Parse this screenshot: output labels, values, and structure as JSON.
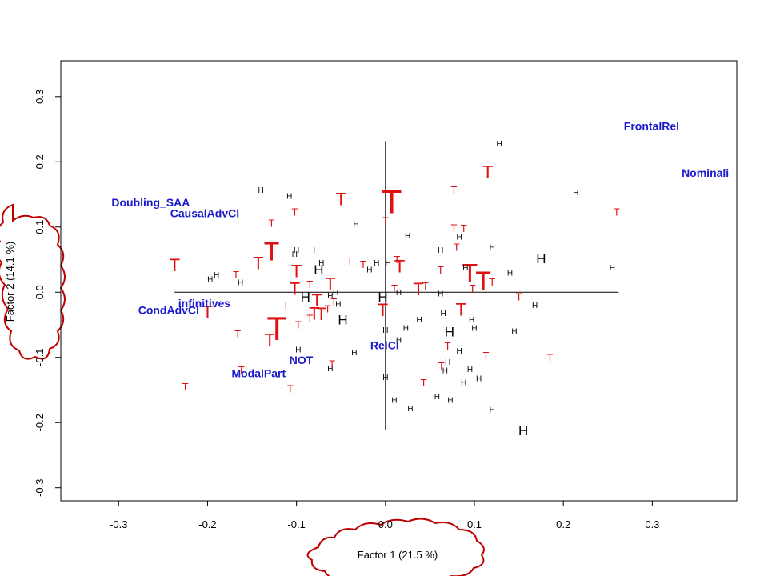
{
  "chart_data": {
    "type": "scatter",
    "title": "",
    "xlabel": "Factor 1  (21.5 %)",
    "ylabel": "Factor 2  (14.1 %)",
    "xlim": [
      -0.365,
      0.395
    ],
    "ylim": [
      -0.32,
      0.355
    ],
    "xticks": [
      -0.3,
      -0.2,
      -0.1,
      0.0,
      0.1,
      0.2,
      0.3
    ],
    "yticks": [
      -0.3,
      -0.2,
      -0.1,
      0.0,
      0.1,
      0.2,
      0.3
    ],
    "xtick_labels": [
      "-0.3",
      "-0.2",
      "-0.1",
      "0.0",
      "0.1",
      "0.2",
      "0.3"
    ],
    "ytick_labels": [
      "-0.3",
      "-0.2",
      "-0.1",
      "0.0",
      "0.1",
      "0.2",
      "0.3"
    ],
    "grid": false,
    "colors": {
      "T": "#e01010",
      "H": "#000000",
      "variables": "#1a1acc",
      "cloud": "#c00000"
    },
    "variables": [
      {
        "label": "FrontalRel",
        "x": 0.268,
        "y": 0.255
      },
      {
        "label": "Nominali",
        "x": 0.333,
        "y": 0.183
      },
      {
        "label": "Doubling_SAA",
        "x": -0.308,
        "y": 0.138
      },
      {
        "label": "CausalAdvCl",
        "x": -0.242,
        "y": 0.121
      },
      {
        "label": "infinitives",
        "x": -0.233,
        "y": -0.017
      },
      {
        "label": "CondAdvCl",
        "x": -0.278,
        "y": -0.027
      },
      {
        "label": "RelCl",
        "x": -0.017,
        "y": -0.081
      },
      {
        "label": "NOT",
        "x": -0.108,
        "y": -0.104
      },
      {
        "label": "ModalPart",
        "x": -0.173,
        "y": -0.124
      }
    ],
    "reference_lines": {
      "horizontal": {
        "y": 0.0,
        "x_from": -0.237,
        "x_to": 0.262
      },
      "vertical": {
        "x": 0.0,
        "y_from": -0.212,
        "y_to": 0.232
      }
    },
    "series": [
      {
        "label": "T",
        "points": [
          {
            "x": 0.115,
            "y": 0.185,
            "size": 2
          },
          {
            "x": -0.05,
            "y": 0.143,
            "size": 2
          },
          {
            "x": 0.077,
            "y": 0.157,
            "size": 1
          },
          {
            "x": 0.26,
            "y": 0.123,
            "size": 1
          },
          {
            "x": -0.102,
            "y": 0.123,
            "size": 1
          },
          {
            "x": -0.128,
            "y": 0.106,
            "size": 1
          },
          {
            "x": 0.077,
            "y": 0.099,
            "size": 1
          },
          {
            "x": 0.088,
            "y": 0.098,
            "size": 1
          },
          {
            "x": 0.08,
            "y": 0.069,
            "size": 1
          },
          {
            "x": 0.007,
            "y": 0.14,
            "size": 4
          },
          {
            "x": 0.0,
            "y": 0.11,
            "size": 1
          },
          {
            "x": -0.128,
            "y": 0.063,
            "size": 3
          },
          {
            "x": -0.143,
            "y": 0.045,
            "size": 2
          },
          {
            "x": -0.237,
            "y": 0.042,
            "size": 2
          },
          {
            "x": -0.04,
            "y": 0.048,
            "size": 1
          },
          {
            "x": -0.025,
            "y": 0.043,
            "size": 1
          },
          {
            "x": 0.013,
            "y": 0.05,
            "size": 1
          },
          {
            "x": 0.016,
            "y": 0.04,
            "size": 2
          },
          {
            "x": -0.1,
            "y": 0.033,
            "size": 2
          },
          {
            "x": 0.062,
            "y": 0.034,
            "size": 1
          },
          {
            "x": 0.095,
            "y": 0.03,
            "size": 3
          },
          {
            "x": 0.11,
            "y": 0.018,
            "size": 3
          },
          {
            "x": -0.168,
            "y": 0.027,
            "size": 1
          },
          {
            "x": -0.062,
            "y": 0.013,
            "size": 2
          },
          {
            "x": -0.102,
            "y": 0.006,
            "size": 2
          },
          {
            "x": -0.085,
            "y": 0.012,
            "size": 1
          },
          {
            "x": 0.12,
            "y": 0.016,
            "size": 1
          },
          {
            "x": 0.045,
            "y": 0.01,
            "size": 1
          },
          {
            "x": 0.037,
            "y": 0.005,
            "size": 2
          },
          {
            "x": 0.01,
            "y": 0.006,
            "size": 1
          },
          {
            "x": 0.098,
            "y": 0.006,
            "size": 1
          },
          {
            "x": -0.077,
            "y": -0.012,
            "size": 2
          },
          {
            "x": -0.058,
            "y": -0.015,
            "size": 1
          },
          {
            "x": 0.15,
            "y": -0.007,
            "size": 1
          },
          {
            "x": -0.112,
            "y": -0.02,
            "size": 1
          },
          {
            "x": -0.065,
            "y": -0.025,
            "size": 1
          },
          {
            "x": -0.08,
            "y": -0.032,
            "size": 2
          },
          {
            "x": -0.072,
            "y": -0.033,
            "size": 2
          },
          {
            "x": -0.003,
            "y": -0.027,
            "size": 2
          },
          {
            "x": 0.085,
            "y": -0.026,
            "size": 2
          },
          {
            "x": -0.2,
            "y": -0.03,
            "size": 2
          },
          {
            "x": -0.085,
            "y": -0.04,
            "size": 1
          },
          {
            "x": -0.098,
            "y": -0.05,
            "size": 1
          },
          {
            "x": -0.122,
            "y": -0.055,
            "size": 4
          },
          {
            "x": -0.166,
            "y": -0.064,
            "size": 1
          },
          {
            "x": -0.13,
            "y": -0.073,
            "size": 2
          },
          {
            "x": 0.07,
            "y": -0.082,
            "size": 1
          },
          {
            "x": 0.113,
            "y": -0.097,
            "size": 1
          },
          {
            "x": 0.185,
            "y": -0.1,
            "size": 1
          },
          {
            "x": -0.06,
            "y": -0.11,
            "size": 1
          },
          {
            "x": 0.063,
            "y": -0.113,
            "size": 1
          },
          {
            "x": -0.162,
            "y": -0.119,
            "size": 1
          },
          {
            "x": 0.043,
            "y": -0.139,
            "size": 1
          },
          {
            "x": -0.225,
            "y": -0.145,
            "size": 1
          },
          {
            "x": -0.107,
            "y": -0.148,
            "size": 1
          }
        ]
      },
      {
        "label": "H",
        "points": [
          {
            "x": 0.128,
            "y": 0.228,
            "size": 1
          },
          {
            "x": -0.14,
            "y": 0.157,
            "size": 1
          },
          {
            "x": -0.108,
            "y": 0.148,
            "size": 1
          },
          {
            "x": 0.214,
            "y": 0.153,
            "size": 1
          },
          {
            "x": -0.033,
            "y": 0.105,
            "size": 1
          },
          {
            "x": 0.083,
            "y": 0.085,
            "size": 1
          },
          {
            "x": 0.025,
            "y": 0.087,
            "size": 1
          },
          {
            "x": -0.1,
            "y": 0.065,
            "size": 1
          },
          {
            "x": -0.078,
            "y": 0.065,
            "size": 1
          },
          {
            "x": 0.062,
            "y": 0.065,
            "size": 1
          },
          {
            "x": 0.12,
            "y": 0.069,
            "size": 1
          },
          {
            "x": 0.175,
            "y": 0.052,
            "size": 2
          },
          {
            "x": -0.102,
            "y": 0.059,
            "size": 1
          },
          {
            "x": -0.01,
            "y": 0.045,
            "size": 1
          },
          {
            "x": 0.003,
            "y": 0.045,
            "size": 1
          },
          {
            "x": -0.072,
            "y": 0.045,
            "size": 1
          },
          {
            "x": -0.075,
            "y": 0.035,
            "size": 2
          },
          {
            "x": -0.018,
            "y": 0.035,
            "size": 1
          },
          {
            "x": 0.09,
            "y": 0.038,
            "size": 1
          },
          {
            "x": 0.255,
            "y": 0.038,
            "size": 1
          },
          {
            "x": 0.14,
            "y": 0.03,
            "size": 1
          },
          {
            "x": -0.19,
            "y": 0.027,
            "size": 1
          },
          {
            "x": -0.197,
            "y": 0.02,
            "size": 1
          },
          {
            "x": -0.163,
            "y": 0.015,
            "size": 1
          },
          {
            "x": -0.056,
            "y": 0.0,
            "size": 1
          },
          {
            "x": 0.015,
            "y": 0.0,
            "size": 1
          },
          {
            "x": -0.09,
            "y": -0.007,
            "size": 2
          },
          {
            "x": -0.003,
            "y": -0.007,
            "size": 2
          },
          {
            "x": 0.062,
            "y": -0.002,
            "size": 1
          },
          {
            "x": -0.062,
            "y": -0.005,
            "size": 1
          },
          {
            "x": -0.053,
            "y": -0.018,
            "size": 1
          },
          {
            "x": 0.168,
            "y": -0.02,
            "size": 1
          },
          {
            "x": -0.048,
            "y": -0.042,
            "size": 2
          },
          {
            "x": 0.065,
            "y": -0.032,
            "size": 1
          },
          {
            "x": 0.097,
            "y": -0.042,
            "size": 1
          },
          {
            "x": 0.038,
            "y": -0.042,
            "size": 1
          },
          {
            "x": 0.023,
            "y": -0.055,
            "size": 1
          },
          {
            "x": 0.1,
            "y": -0.055,
            "size": 1
          },
          {
            "x": 0.145,
            "y": -0.06,
            "size": 1
          },
          {
            "x": 0.072,
            "y": -0.06,
            "size": 2
          },
          {
            "x": 0.0,
            "y": -0.058,
            "size": 1
          },
          {
            "x": 0.015,
            "y": -0.073,
            "size": 1
          },
          {
            "x": -0.098,
            "y": -0.088,
            "size": 1
          },
          {
            "x": -0.035,
            "y": -0.092,
            "size": 1
          },
          {
            "x": 0.083,
            "y": -0.09,
            "size": 1
          },
          {
            "x": 0.07,
            "y": -0.107,
            "size": 1
          },
          {
            "x": 0.095,
            "y": -0.118,
            "size": 1
          },
          {
            "x": 0.067,
            "y": -0.12,
            "size": 1
          },
          {
            "x": -0.062,
            "y": -0.117,
            "size": 1
          },
          {
            "x": 0.0,
            "y": -0.13,
            "size": 1
          },
          {
            "x": 0.105,
            "y": -0.132,
            "size": 1
          },
          {
            "x": 0.088,
            "y": -0.138,
            "size": 1
          },
          {
            "x": 0.058,
            "y": -0.16,
            "size": 1
          },
          {
            "x": 0.073,
            "y": -0.165,
            "size": 1
          },
          {
            "x": 0.01,
            "y": -0.165,
            "size": 1
          },
          {
            "x": 0.028,
            "y": -0.178,
            "size": 1
          },
          {
            "x": 0.12,
            "y": -0.18,
            "size": 1
          },
          {
            "x": 0.155,
            "y": -0.212,
            "size": 2
          }
        ]
      }
    ]
  }
}
